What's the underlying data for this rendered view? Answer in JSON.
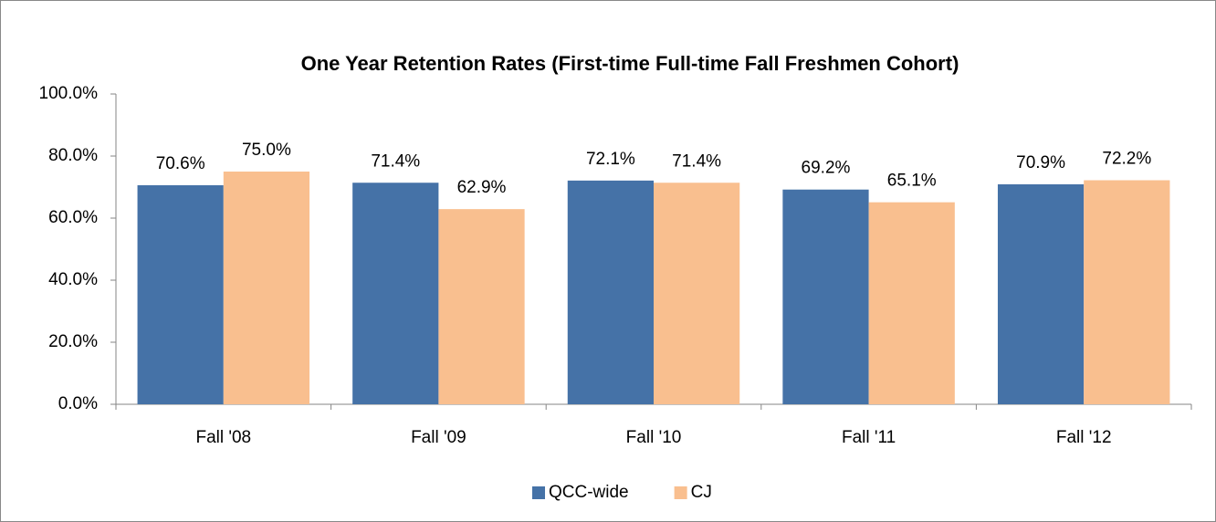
{
  "chart_data": {
    "type": "bar",
    "title": "One Year Retention Rates (First-time Full-time Fall Freshmen Cohort)",
    "categories": [
      "Fall '08",
      "Fall '09",
      "Fall '10",
      "Fall '11",
      "Fall '12"
    ],
    "series": [
      {
        "name": "QCC-wide",
        "color": "#4572a7",
        "values": [
          70.6,
          71.4,
          72.1,
          69.2,
          70.9
        ],
        "value_labels": [
          "70.6%",
          "71.4%",
          "72.1%",
          "69.2%",
          "70.9%"
        ]
      },
      {
        "name": "CJ",
        "color": "#f9bf8f",
        "values": [
          75.0,
          62.9,
          71.4,
          65.1,
          72.2
        ],
        "value_labels": [
          "75.0%",
          "62.9%",
          "71.4%",
          "65.1%",
          "72.2%"
        ]
      }
    ],
    "ylim": [
      0,
      100
    ],
    "yticks": [
      {
        "value": 0,
        "label": "0.0%"
      },
      {
        "value": 20,
        "label": "20.0%"
      },
      {
        "value": 40,
        "label": "40.0%"
      },
      {
        "value": 60,
        "label": "60.0%"
      },
      {
        "value": 80,
        "label": "80.0%"
      },
      {
        "value": 100,
        "label": "100.0%"
      }
    ],
    "legend": "bottom"
  }
}
